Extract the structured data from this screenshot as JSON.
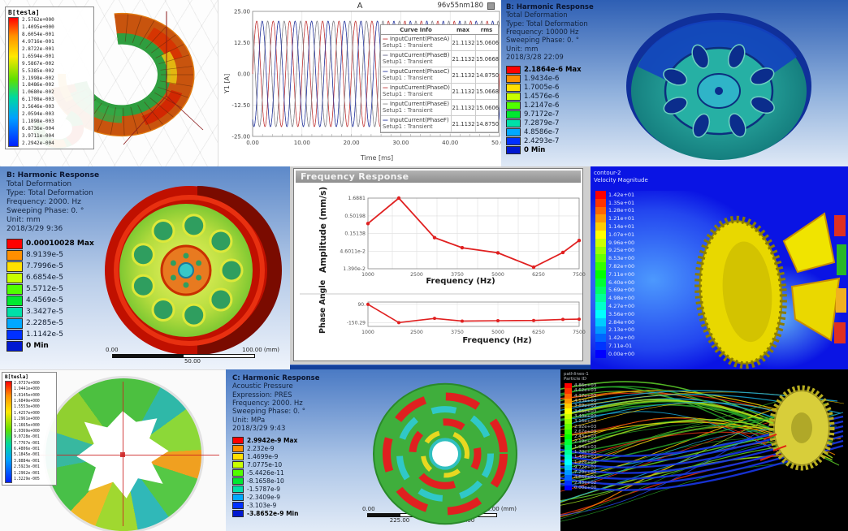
{
  "panels": {
    "maxwell_torus": {
      "legend_title": "B[tesla]",
      "values": [
        "2.5762e+000",
        "1.4095e+000",
        "8.6054e-001",
        "4.9716e-001",
        "2.8722e-001",
        "1.6594e-001",
        "9.5867e-002",
        "5.5385e-002",
        "3.1998e-002",
        "1.8486e-002",
        "1.0680e-002",
        "6.1708e-003",
        "3.5646e-003",
        "2.0594e-003",
        "1.1898e-003",
        "6.8736e-004",
        "3.9711e-004",
        "2.2942e-004"
      ]
    },
    "harmonic_top": {
      "info_lines": [
        "B: Harmonic Response",
        "Total Deformation",
        "Type: Total Deformation",
        "Frequency: 10000 Hz",
        "Sweeping Phase: 0. °",
        "Unit: mm",
        "2018/3/28 22:09"
      ],
      "legend": [
        "2.1864e-6 Max",
        "1.9434e-6",
        "1.7005e-6",
        "1.4576e-6",
        "1.2147e-6",
        "9.7172e-7",
        "7.2879e-7",
        "4.8586e-7",
        "2.4293e-7",
        "0 Min"
      ]
    },
    "harmonic_mid": {
      "info_lines": [
        "B: Harmonic Response",
        "Total Deformation",
        "Type: Total Deformation",
        "Frequency: 2000. Hz",
        "Sweeping Phase: 0. °",
        "Unit: mm",
        "2018/3/29 9:36"
      ],
      "legend": [
        "0.00010028 Max",
        "8.9139e-5",
        "7.7996e-5",
        "6.6854e-5",
        "5.5712e-5",
        "4.4569e-5",
        "3.3427e-5",
        "2.2285e-5",
        "1.1142e-5",
        "0 Min"
      ],
      "ruler": {
        "start": "0.00",
        "mid": "50.00",
        "end": "100.00 (mm)"
      }
    },
    "freq_window": {
      "window_title": "Frequency Response"
    },
    "cfd_velocity": {
      "legend_title": "contour-2",
      "legend_subtitle": "Velocity Magnitude",
      "values": [
        "1.42e+01",
        "1.35e+01",
        "1.28e+01",
        "1.21e+01",
        "1.14e+01",
        "1.07e+01",
        "9.96e+00",
        "9.25e+00",
        "8.53e+00",
        "7.82e+00",
        "7.11e+00",
        "6.40e+00",
        "5.69e+00",
        "4.98e+00",
        "4.27e+00",
        "3.56e+00",
        "2.84e+00",
        "2.13e+00",
        "1.42e+00",
        "7.11e-01",
        "0.00e+00"
      ]
    },
    "maxwell_ring": {
      "legend_title": "B[tesla]",
      "values": [
        "2.0737e+000",
        "1.9441e+000",
        "1.8145e+000",
        "1.6849e+000",
        "1.5553e+000",
        "1.4257e+000",
        "1.2961e+000",
        "1.1665e+000",
        "1.0369e+000",
        "9.0728e-001",
        "7.7767e-001",
        "6.4806e-001",
        "5.1845e-001",
        "3.8884e-001",
        "2.5923e-001",
        "1.2962e-001",
        "1.3229e-005"
      ]
    },
    "harmonic_acoustic": {
      "info_lines": [
        "C: Harmonic Response",
        "Acoustic Pressure",
        "Expression: PRES",
        "Frequency: 2000. Hz",
        "Sweeping Phase: 0. °",
        "Unit: MPa",
        "2018/3/29 9:43"
      ],
      "legend": [
        "2.9942e-9 Max",
        "2.232e-9",
        "1.4699e-9",
        "7.0775e-10",
        "-5.4426e-11",
        "-8.1658e-10",
        "-1.5787e-9",
        "-2.3409e-9",
        "-3.103e-9",
        "-3.8652e-9 Min"
      ],
      "ruler": {
        "t0": "0.00",
        "t2": "450.00",
        "t4": "900.00 (mm)",
        "b1": "225.00",
        "b3": "675.00"
      }
    },
    "pathlines": {
      "legend_title": "pathlines-1",
      "legend_subtitle": "Particle ID",
      "values": [
        "4.86e+03",
        "4.62e+03",
        "4.37e+03",
        "4.13e+03",
        "3.89e+03",
        "3.65e+03",
        "3.40e+03",
        "3.16e+03",
        "2.92e+03",
        "2.67e+03",
        "2.43e+03",
        "2.19e+03",
        "1.94e+03",
        "1.70e+03",
        "1.46e+03",
        "1.22e+03",
        "9.72e+02",
        "7.29e+02",
        "4.86e+02",
        "2.43e+02",
        "0.00e+00"
      ]
    }
  },
  "chart_data": [
    {
      "id": "input-currents",
      "type": "line",
      "title": "A",
      "window_label": "96v55nm180",
      "xlabel": "Time [ms]",
      "ylabel": "Y1 [A]",
      "xlim": [
        0,
        50
      ],
      "ylim": [
        -25,
        25
      ],
      "x_ticks": [
        "0.00",
        "10.00",
        "20.00",
        "30.00",
        "40.00",
        "50.00"
      ],
      "y_ticks": [
        "25.00",
        "12.50",
        "0.00",
        "-12.50",
        "-25.00"
      ],
      "grid": true,
      "legend_position": "right",
      "legend_header": [
        "Curve Info",
        "max",
        "rms"
      ],
      "waveform": {
        "amplitude": 21.1132,
        "period_ms": 3.3333
      },
      "series": [
        {
          "name": "InputCurrent(PhaseA)",
          "setup": "Setup1 : Transient",
          "max": "21.1132",
          "rms": "15.0606",
          "color": "#c23b3b",
          "phase_deg": 0
        },
        {
          "name": "InputCurrent(PhaseB)",
          "setup": "Setup1 : Transient",
          "max": "21.1132",
          "rms": "15.0668",
          "color": "#6a6a8a",
          "phase_deg": 120
        },
        {
          "name": "InputCurrent(PhaseC)",
          "setup": "Setup1 : Transient",
          "max": "21.1132",
          "rms": "14.8750",
          "color": "#2a3a9e",
          "phase_deg": 240
        },
        {
          "name": "InputCurrent(PhaseD)",
          "setup": "Setup1 : Transient",
          "max": "21.1132",
          "rms": "15.0668",
          "color": "#c23b3b",
          "phase_deg": 0
        },
        {
          "name": "InputCurrent(PhaseE)",
          "setup": "Setup1 : Transient",
          "max": "21.1132",
          "rms": "15.0606",
          "color": "#8a8a8a",
          "phase_deg": 120
        },
        {
          "name": "InputCurrent(PhaseF)",
          "setup": "Setup1 : Transient",
          "max": "21.1132",
          "rms": "14.8750",
          "color": "#2a3a9e",
          "phase_deg": 240
        }
      ]
    },
    {
      "id": "freq-amplitude",
      "type": "line",
      "yscale": "log",
      "ylabel": "Amplitude (mm/s)",
      "xlabel": "Frequency (Hz)",
      "xlim": [
        1000,
        7500
      ],
      "x_ticks": [
        1000,
        2500,
        3750,
        5000,
        6250,
        7500
      ],
      "x_tick_labels": [
        "1000",
        "2500",
        "3750",
        "5000",
        "6250",
        "7500"
      ],
      "y_ticks": [
        1.6881,
        0.50198,
        0.15138,
        0.046011,
        0.0139
      ],
      "y_tick_labels": [
        "1.6881",
        "0.50198",
        "0.15138",
        "4.6011e-2",
        "1.390e-2"
      ],
      "color": "#e02020",
      "marker": "circle",
      "points": [
        [
          1000,
          0.3
        ],
        [
          1950,
          1.6881
        ],
        [
          3050,
          0.115
        ],
        [
          3900,
          0.058
        ],
        [
          5000,
          0.041
        ],
        [
          6100,
          0.0155
        ],
        [
          7000,
          0.042
        ],
        [
          7500,
          0.095
        ]
      ]
    },
    {
      "id": "freq-phase",
      "type": "line",
      "ylabel": "Phase Angle",
      "xlabel": "Frequency (Hz)",
      "xlim": [
        1000,
        7500
      ],
      "ylim": [
        -200,
        120
      ],
      "x_ticks": [
        1000,
        2500,
        3750,
        5000,
        6250,
        7500
      ],
      "x_tick_labels": [
        "1000",
        "2500",
        "3750",
        "5000",
        "6250",
        "7500"
      ],
      "y_ticks": [
        90,
        -150.29
      ],
      "y_tick_labels": [
        "90.",
        "-150.29"
      ],
      "color": "#e02020",
      "marker": "circle",
      "points": [
        [
          1000,
          90
        ],
        [
          1950,
          -150.29
        ],
        [
          3050,
          -95
        ],
        [
          3900,
          -130
        ],
        [
          5000,
          -125
        ],
        [
          6100,
          -122
        ],
        [
          7000,
          -108
        ],
        [
          7500,
          -105
        ]
      ]
    }
  ]
}
